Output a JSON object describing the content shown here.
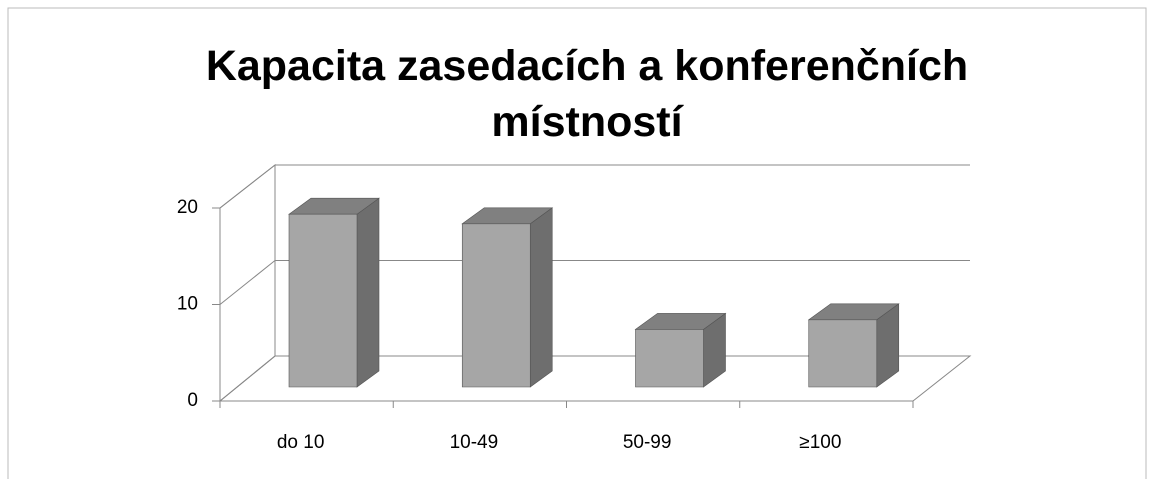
{
  "chart_data": {
    "type": "bar3d",
    "title": "Kapacita zasedacích a konferenčních místností",
    "categories": [
      "do 10",
      "10-49",
      "50-99",
      "≥100"
    ],
    "values": [
      18,
      17,
      6,
      7
    ],
    "color": "#a6a6a6",
    "ylim": [
      0,
      20
    ],
    "yticks": [
      0,
      10,
      20
    ],
    "grid": true
  }
}
